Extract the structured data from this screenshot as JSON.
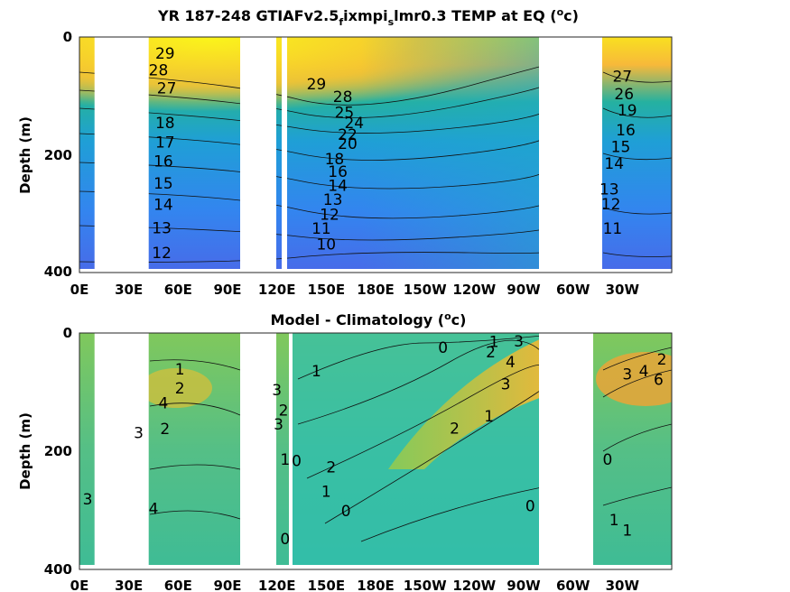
{
  "chart_data": [
    {
      "type": "heatmap",
      "title_parts": {
        "a": "YR 187-248 GTIAFv2.5",
        "sub1": "f",
        "b": "ixmpi",
        "sub2": "s",
        "c": "lmr0.3 TEMP at EQ (",
        "sup": "o",
        "d": "c)"
      },
      "ylabel": "Depth (m)",
      "xticks": [
        "0E",
        "30E",
        "60E",
        "90E",
        "120E",
        "150E",
        "180E",
        "150W",
        "120W",
        "90W",
        "60W",
        "30W"
      ],
      "yticks": [
        "0",
        "200",
        "400"
      ],
      "xlim_deg_east": [
        0,
        360
      ],
      "ylim_m": [
        0,
        400
      ],
      "y_reversed": true,
      "land_gaps_deg_east": [
        [
          10,
          43
        ],
        [
          98,
          120
        ],
        [
          279,
          318
        ]
      ],
      "contour_labels": [
        {
          "lon": 52,
          "depth": 28,
          "text": "29"
        },
        {
          "lon": 48,
          "depth": 57,
          "text": "28"
        },
        {
          "lon": 53,
          "depth": 88,
          "text": "27"
        },
        {
          "lon": 52,
          "depth": 148,
          "text": "18"
        },
        {
          "lon": 52,
          "depth": 181,
          "text": "17"
        },
        {
          "lon": 51,
          "depth": 214,
          "text": "16"
        },
        {
          "lon": 51,
          "depth": 252,
          "text": "15"
        },
        {
          "lon": 51,
          "depth": 289,
          "text": "14"
        },
        {
          "lon": 50,
          "depth": 329,
          "text": "13"
        },
        {
          "lon": 50,
          "depth": 372,
          "text": "12"
        },
        {
          "lon": 144,
          "depth": 81,
          "text": "29"
        },
        {
          "lon": 160,
          "depth": 103,
          "text": "28"
        },
        {
          "lon": 161,
          "depth": 130,
          "text": "25"
        },
        {
          "lon": 167,
          "depth": 148,
          "text": "24"
        },
        {
          "lon": 163,
          "depth": 168,
          "text": "22"
        },
        {
          "lon": 163,
          "depth": 184,
          "text": "20"
        },
        {
          "lon": 155,
          "depth": 210,
          "text": "18"
        },
        {
          "lon": 157,
          "depth": 232,
          "text": "16"
        },
        {
          "lon": 157,
          "depth": 256,
          "text": "14"
        },
        {
          "lon": 154,
          "depth": 280,
          "text": "13"
        },
        {
          "lon": 152,
          "depth": 306,
          "text": "12"
        },
        {
          "lon": 147,
          "depth": 330,
          "text": "11"
        },
        {
          "lon": 150,
          "depth": 357,
          "text": "10"
        },
        {
          "lon": 330,
          "depth": 68,
          "text": "27"
        },
        {
          "lon": 331,
          "depth": 98,
          "text": "26"
        },
        {
          "lon": 333,
          "depth": 126,
          "text": "19"
        },
        {
          "lon": 332,
          "depth": 160,
          "text": "16"
        },
        {
          "lon": 329,
          "depth": 189,
          "text": "15"
        },
        {
          "lon": 325,
          "depth": 218,
          "text": "14"
        },
        {
          "lon": 322,
          "depth": 262,
          "text": "13"
        },
        {
          "lon": 323,
          "depth": 288,
          "text": "12"
        },
        {
          "lon": 324,
          "depth": 330,
          "text": "11"
        }
      ]
    },
    {
      "type": "heatmap",
      "title_parts": {
        "a": "Model - Climatology (",
        "sup": "o",
        "b": "c)"
      },
      "ylabel": "Depth (m)",
      "xticks": [
        "0E",
        "30E",
        "60E",
        "90E",
        "120E",
        "150E",
        "180E",
        "150W",
        "120W",
        "90W",
        "60W",
        "30W"
      ],
      "yticks": [
        "0",
        "200",
        "400"
      ],
      "xlim_deg_east": [
        0,
        360
      ],
      "ylim_m": [
        0,
        400
      ],
      "y_reversed": true,
      "land_gaps_deg_east": [
        [
          10,
          43
        ],
        [
          98,
          120
        ],
        [
          278,
          315
        ]
      ],
      "contour_labels": [
        {
          "lon": 61,
          "depth": 62,
          "text": "1"
        },
        {
          "lon": 61,
          "depth": 95,
          "text": "2"
        },
        {
          "lon": 51,
          "depth": 121,
          "text": "4"
        },
        {
          "lon": 52,
          "depth": 165,
          "text": "2"
        },
        {
          "lon": 36,
          "depth": 172,
          "text": "3"
        },
        {
          "lon": 5,
          "depth": 286,
          "text": "3"
        },
        {
          "lon": 45,
          "depth": 303,
          "text": "4"
        },
        {
          "lon": 144,
          "depth": 65,
          "text": "1"
        },
        {
          "lon": 120,
          "depth": 98,
          "text": "3"
        },
        {
          "lon": 121,
          "depth": 157,
          "text": "3"
        },
        {
          "lon": 124,
          "depth": 133,
          "text": "2"
        },
        {
          "lon": 125,
          "depth": 218,
          "text": "1"
        },
        {
          "lon": 132,
          "depth": 220,
          "text": "0"
        },
        {
          "lon": 153,
          "depth": 231,
          "text": "2"
        },
        {
          "lon": 150,
          "depth": 273,
          "text": "1"
        },
        {
          "lon": 162,
          "depth": 307,
          "text": "0"
        },
        {
          "lon": 125,
          "depth": 355,
          "text": "0"
        },
        {
          "lon": 221,
          "depth": 25,
          "text": "0"
        },
        {
          "lon": 252,
          "depth": 15,
          "text": "1"
        },
        {
          "lon": 250,
          "depth": 33,
          "text": "2"
        },
        {
          "lon": 267,
          "depth": 14,
          "text": "3"
        },
        {
          "lon": 262,
          "depth": 50,
          "text": "4"
        },
        {
          "lon": 259,
          "depth": 88,
          "text": "3"
        },
        {
          "lon": 249,
          "depth": 143,
          "text": "1"
        },
        {
          "lon": 228,
          "depth": 164,
          "text": "2"
        },
        {
          "lon": 274,
          "depth": 298,
          "text": "0"
        },
        {
          "lon": 321,
          "depth": 218,
          "text": "0"
        },
        {
          "lon": 333,
          "depth": 71,
          "text": "3"
        },
        {
          "lon": 343,
          "depth": 65,
          "text": "4"
        },
        {
          "lon": 352,
          "depth": 80,
          "text": "6"
        },
        {
          "lon": 354,
          "depth": 45,
          "text": "2"
        },
        {
          "lon": 325,
          "depth": 322,
          "text": "1"
        },
        {
          "lon": 333,
          "depth": 340,
          "text": "1"
        }
      ]
    }
  ]
}
